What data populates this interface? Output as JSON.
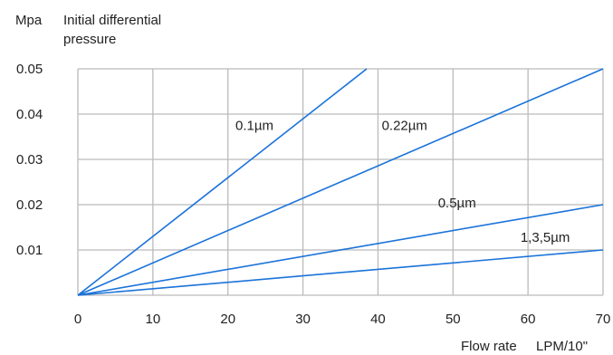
{
  "chart_data": {
    "type": "line",
    "ylabel_unit": "Mpa",
    "ylabel_lines": [
      "Initial differential",
      "pressure"
    ],
    "xlabel": "Flow rate",
    "xlabel_unit": "LPM/10\"",
    "xlim": [
      0,
      70
    ],
    "ylim": [
      0,
      0.05
    ],
    "x_ticks": [
      "0",
      "10",
      "20",
      "30",
      "40",
      "50",
      "60",
      "70"
    ],
    "x_tick_values": [
      0,
      10,
      20,
      30,
      40,
      50,
      60,
      70
    ],
    "y_ticks": [
      "0.01",
      "0.02",
      "0.03",
      "0.04",
      "0.05"
    ],
    "y_tick_values": [
      0.01,
      0.02,
      0.03,
      0.04,
      0.05
    ],
    "grid": true,
    "line_color": "#1a73d9",
    "grid_color": "#bbbbbb",
    "series": [
      {
        "name": "0.1µm",
        "x": [
          0,
          38.5
        ],
        "y": [
          0,
          0.05
        ],
        "label_x": 21,
        "label_y": 0.0365
      },
      {
        "name": "0.22µm",
        "x": [
          0,
          70
        ],
        "y": [
          0,
          0.05
        ],
        "label_x": 40.5,
        "label_y": 0.0365
      },
      {
        "name": "0.5µm",
        "x": [
          0,
          70
        ],
        "y": [
          0,
          0.02
        ],
        "label_x": 48,
        "label_y": 0.0194
      },
      {
        "name": "1,3,5µm",
        "x": [
          0,
          70
        ],
        "y": [
          0,
          0.01
        ],
        "label_x": 59,
        "label_y": 0.0118
      }
    ]
  }
}
